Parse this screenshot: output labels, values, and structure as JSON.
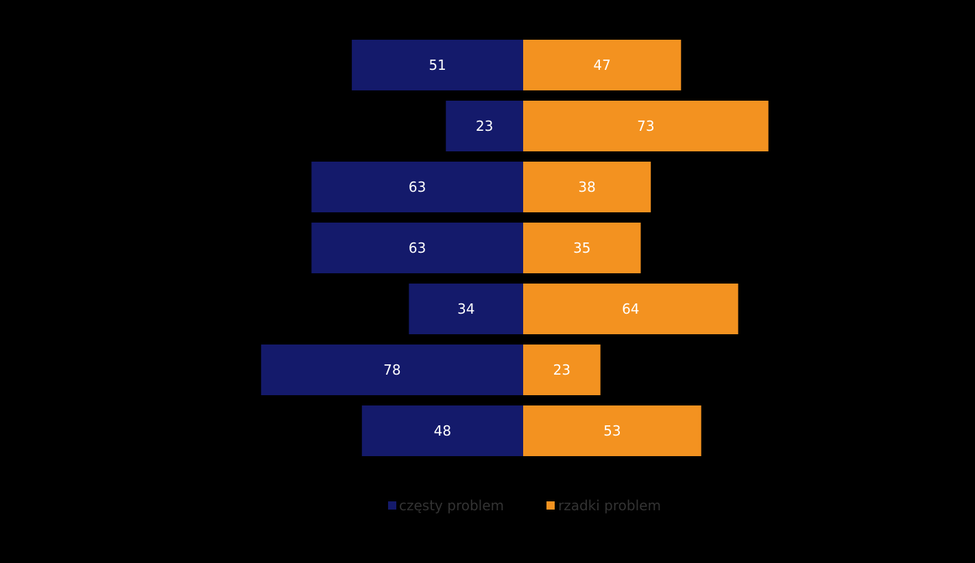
{
  "chart_data": {
    "type": "bar",
    "orientation": "horizontal",
    "layout": "diverging",
    "categories": [
      "",
      "",
      "",
      "",
      "",
      "",
      ""
    ],
    "series": [
      {
        "name": "częsty problem",
        "color": "#141a6b",
        "side": "left",
        "values": [
          51,
          23,
          63,
          63,
          34,
          78,
          48
        ]
      },
      {
        "name": "rzadki problem",
        "color": "#f39220",
        "side": "right",
        "values": [
          47,
          73,
          38,
          35,
          64,
          23,
          53
        ]
      }
    ],
    "title": "",
    "xlabel": "",
    "ylabel": "",
    "data_labels": true,
    "legend_position": "bottom",
    "grid": false,
    "background_color": "#000000"
  }
}
